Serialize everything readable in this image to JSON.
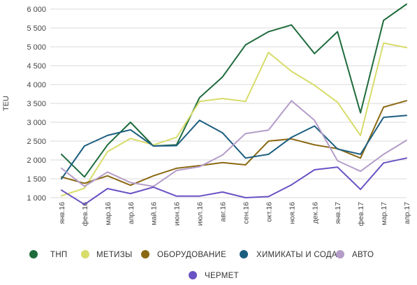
{
  "chart_data": {
    "type": "line",
    "ylabel": "TEU",
    "xlabel": "",
    "ylim": [
      1000,
      6000
    ],
    "yticks": [
      1000,
      1500,
      2000,
      2500,
      3000,
      3500,
      4000,
      4500,
      5000,
      5500,
      6000
    ],
    "ytick_labels": [
      "1 000",
      "1 500",
      "2 000",
      "2 500",
      "3 000",
      "3 500",
      "4 000",
      "4 500",
      "5 000",
      "5 500",
      "6 000"
    ],
    "categories": [
      "янв.16",
      "фев.16",
      "мар.16",
      "апр.16",
      "май.16",
      "июн.16",
      "июл.16",
      "авг.16",
      "сен.16",
      "окт.16",
      "ноя.16",
      "дек.16",
      "янв.17",
      "фев.17",
      "мар.17",
      "апр.17"
    ],
    "grid": "horizontal",
    "legend_position": "bottom",
    "series": [
      {
        "name": "ТНП",
        "color": "#1e6b3c",
        "values": [
          2150,
          1550,
          2400,
          3000,
          2370,
          2400,
          3650,
          4200,
          5050,
          5400,
          5580,
          4820,
          5400,
          3250,
          5700,
          6130
        ]
      },
      {
        "name": "МЕТИЗЫ",
        "color": "#d7dc6a",
        "values": [
          1050,
          1250,
          2220,
          2570,
          2400,
          2600,
          3550,
          3630,
          3550,
          4850,
          4350,
          3980,
          3530,
          2650,
          5100,
          4980
        ]
      },
      {
        "name": "ОБОРУДОВАНИЕ",
        "color": "#8b6914",
        "values": [
          1550,
          1380,
          1580,
          1330,
          1580,
          1780,
          1850,
          1930,
          1870,
          2500,
          2560,
          2400,
          2300,
          2050,
          3400,
          3570
        ]
      },
      {
        "name": "ХИМИКАТЫ И СОДА",
        "color": "#1b5e80",
        "values": [
          1500,
          2370,
          2650,
          2800,
          2370,
          2380,
          3050,
          2720,
          2050,
          2150,
          2600,
          2900,
          2290,
          2150,
          3130,
          3180
        ]
      },
      {
        "name": "АВТО",
        "color": "#b49cc8",
        "values": [
          1780,
          1300,
          1680,
          1400,
          1300,
          1720,
          1820,
          2130,
          2700,
          2790,
          3570,
          3050,
          1980,
          1700,
          2150,
          2520
        ]
      },
      {
        "name": "ЧЕРМЕТ",
        "color": "#6a52c4",
        "values": [
          1200,
          820,
          1240,
          1110,
          1280,
          1040,
          1040,
          1150,
          1000,
          1030,
          1340,
          1740,
          1810,
          1220,
          1920,
          2050
        ]
      }
    ]
  }
}
